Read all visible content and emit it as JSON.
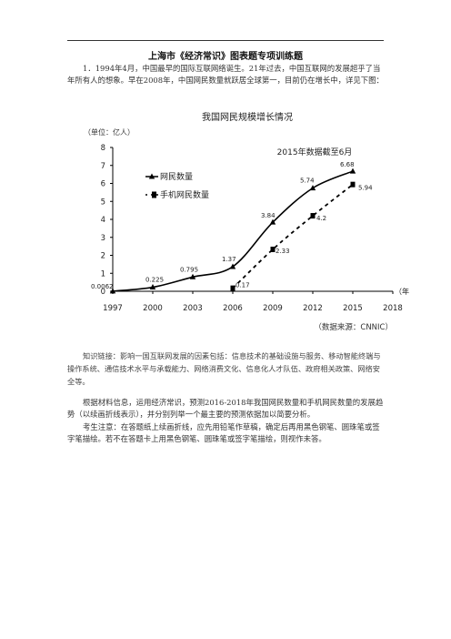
{
  "document": {
    "title": "上海市《经济常识》图表题专项训练题",
    "question_1": "1．1994年4月，中国最早的国际互联网络诞生。21年过去，中国互联网的发展超乎了当年所有人的想象。早在2008年，中国网民数量就跃居全球第一，目前仍在增长中，详见下图：",
    "knowledge_link": "知识链接：影响一国互联网发展的因素包括：信息技术的基础设施与服务、移动智能终端与操作系统、通信技术水平与承载能力、网络消费文化、信息化人才队伍、政府相关政策、网络安全等。",
    "instruction": "根据材料信息，运用经济常识，预测2016-2018年我国网民数量和手机网民数量的发展趋势（以续画折线表示），并分别列举一个最主要的预测依据加以简要分析。",
    "exam_note": "考生注意：在答题纸上续画折线，应先用铅笔作草稿，确定后再用黑色钢笔、圆珠笔或签字笔描绘。若不在答题卡上用黑色钢笔、圆珠笔或签字笔描绘，则视作未答。"
  },
  "chart_data": {
    "type": "line",
    "title": "我国网民规模增长情况",
    "ylabel": "（单位：亿人）",
    "xlabel": "（年）",
    "annotation": "2015年数据截至6月",
    "source": "（数据来源：CNNIC）",
    "x_ticks": [
      "1997",
      "2000",
      "2003",
      "2006",
      "2009",
      "2012",
      "2015",
      "2018"
    ],
    "y_ticks": [
      "0",
      "1",
      "2",
      "3",
      "4",
      "5",
      "6",
      "7",
      "8"
    ],
    "ylim": [
      0,
      8
    ],
    "xlim": [
      1997,
      2018
    ],
    "grid": false,
    "legend_position": "upper-left",
    "series": [
      {
        "name": "网民数量",
        "style": "solid",
        "marker": "triangle",
        "color": "#000000",
        "x": [
          1997,
          2000,
          2003,
          2006,
          2009,
          2012,
          2015
        ],
        "values": [
          0.0062,
          0.225,
          0.795,
          1.37,
          3.84,
          5.74,
          6.68
        ],
        "labels": [
          "0.0062",
          "0.225",
          "0.795",
          "1.37",
          "3.84",
          "5.74",
          "6.68"
        ]
      },
      {
        "name": "手机网民数量",
        "style": "dashed",
        "marker": "square",
        "color": "#000000",
        "x": [
          2006,
          2009,
          2012,
          2015
        ],
        "values": [
          0.17,
          2.33,
          4.2,
          5.94
        ],
        "labels": [
          "0.17",
          "2.33",
          "4.2",
          "5.94"
        ]
      }
    ]
  }
}
